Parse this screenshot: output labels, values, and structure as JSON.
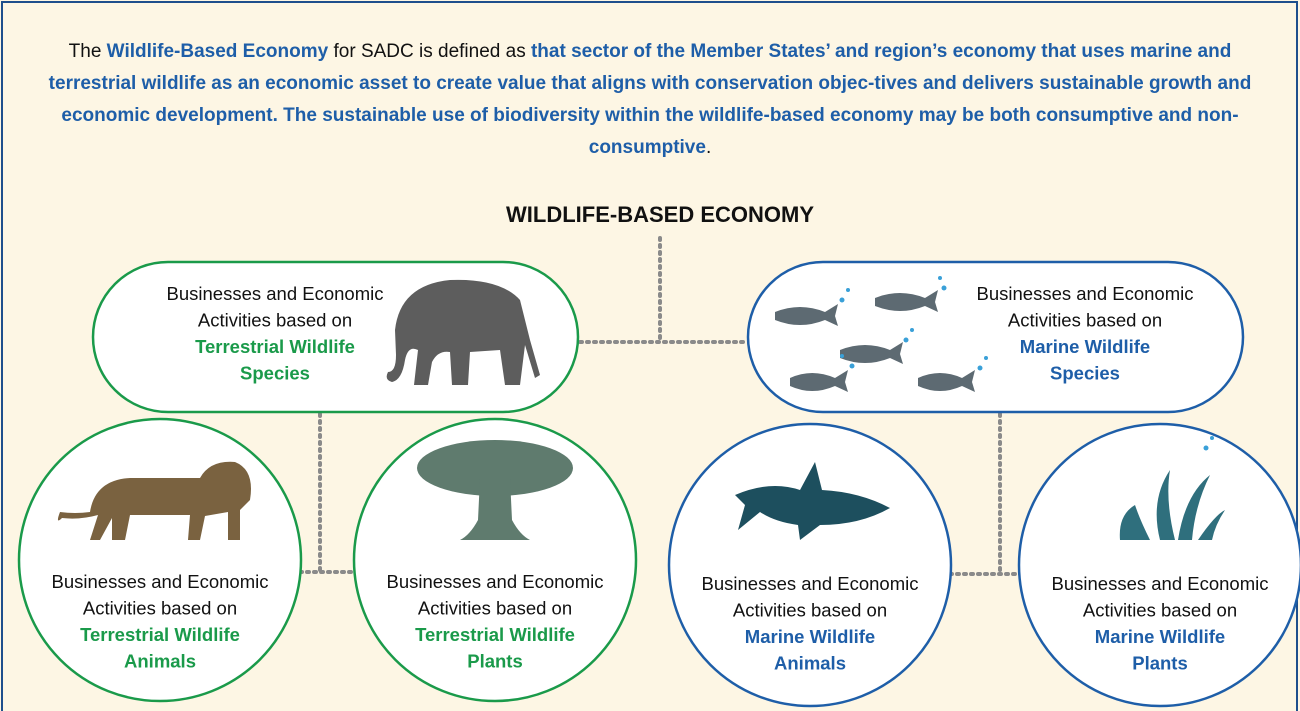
{
  "intro": [
    {
      "text": "The ",
      "emphasis": false
    },
    {
      "text": "Wildlife-Based Economy",
      "emphasis": true
    },
    {
      "text": " for SADC is defined as ",
      "emphasis": false
    },
    {
      "text": "that sector of the Member States’ and region’s economy that uses marine and terrestrial wildlife as an economic asset to create value that aligns with conservation objec-tives and delivers sustainable growth and economic development. The sustainable use of biodiversity within the wildlife-based economy may be both consumptive and non-consumptive",
      "emphasis": true
    },
    {
      "text": ".",
      "emphasis": false
    }
  ],
  "title": "WILDLIFE-BASED ECONOMY",
  "nodes": [
    {
      "lines": [
        "Businesses and Economic",
        "Activities based on"
      ],
      "highlight": [
        "Terrestrial Wildlife",
        "Species"
      ],
      "color": "#1a9a4a"
    },
    {
      "lines": [
        "Businesses and Economic",
        "Activities based on"
      ],
      "highlight": [
        "Marine Wildlife",
        "Species"
      ],
      "color": "#1e5ea8"
    },
    {
      "lines": [
        "Businesses and Economic",
        "Activities based on"
      ],
      "highlight": [
        "Terrestrial Wildlife",
        "Animals"
      ],
      "color": "#1a9a4a"
    },
    {
      "lines": [
        "Businesses and Economic",
        "Activities based on"
      ],
      "highlight": [
        "Terrestrial Wildlife",
        "Plants"
      ],
      "color": "#1a9a4a"
    },
    {
      "lines": [
        "Businesses and Economic",
        "Activities based on"
      ],
      "highlight": [
        "Marine Wildlife",
        "Animals"
      ],
      "color": "#1e5ea8"
    },
    {
      "lines": [
        "Businesses and Economic",
        "Activities based on"
      ],
      "highlight": [
        "Marine Wildlife",
        "Plants"
      ],
      "color": "#1e5ea8"
    }
  ]
}
